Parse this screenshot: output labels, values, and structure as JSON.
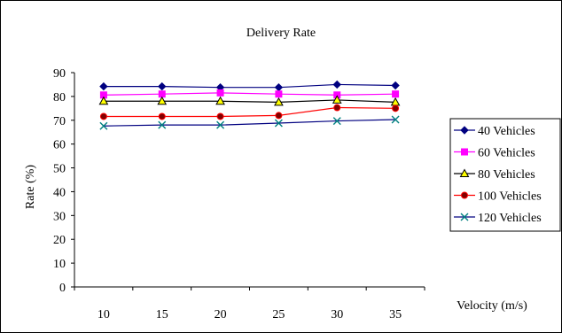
{
  "chart_data": {
    "type": "line",
    "title": "Delivery Rate",
    "xlabel": "Velocity (m/s)",
    "ylabel": "Rate (%)",
    "categories": [
      "10",
      "15",
      "20",
      "25",
      "30",
      "35"
    ],
    "ylim": [
      0,
      90
    ],
    "yticks": [
      "0",
      "10",
      "20",
      "30",
      "40",
      "50",
      "60",
      "70",
      "80",
      "90"
    ],
    "grid": false,
    "legend_position": "right",
    "series": [
      {
        "name": "40 Vehicles",
        "values": [
          84.2,
          84.2,
          83.8,
          83.8,
          85.0,
          84.6
        ],
        "color": "#000080",
        "marker": "diamond"
      },
      {
        "name": "60 Vehicles",
        "values": [
          80.6,
          81.0,
          81.5,
          81.0,
          80.6,
          81.0
        ],
        "color": "#ff00ff",
        "marker": "square"
      },
      {
        "name": "80 Vehicles",
        "values": [
          78.0,
          78.0,
          78.0,
          77.6,
          78.5,
          77.6
        ],
        "color": "#000000",
        "marker": "triangle",
        "marker_fill": "#ffff00"
      },
      {
        "name": "100 Vehicles",
        "values": [
          71.6,
          71.6,
          71.6,
          72.0,
          75.3,
          75.0
        ],
        "color": "#ff0000",
        "marker": "circle",
        "marker_fill": "#800000"
      },
      {
        "name": "120 Vehicles",
        "values": [
          67.6,
          68.0,
          68.0,
          68.8,
          69.7,
          70.3
        ],
        "color": "#000080",
        "marker": "x",
        "marker_stroke": "#008080"
      }
    ]
  }
}
